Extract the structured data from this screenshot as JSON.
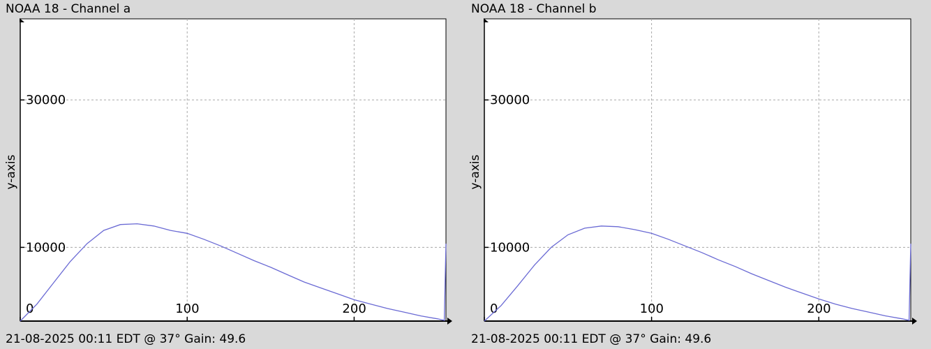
{
  "colors": {
    "background": "#d9d9d9",
    "plot_bg": "#ffffff",
    "series": "#6a6ad4",
    "grid": "#a8a8a8"
  },
  "panels": [
    {
      "title": "NOAA 18 - Channel a",
      "footer": "21-08-2025 00:11 EDT @ 37° Gain: 49.6"
    },
    {
      "title": "NOAA 18 - Channel b",
      "footer": "21-08-2025 00:11 EDT @ 37° Gain: 49.6"
    }
  ],
  "chart_data": [
    {
      "type": "line",
      "title": "NOAA 18 - Channel a",
      "xlabel": "",
      "ylabel": "y-axis",
      "x_ticks": [
        0,
        100,
        200
      ],
      "y_ticks": [
        10000,
        30000
      ],
      "xlim": [
        0,
        255
      ],
      "ylim": [
        0,
        41000
      ],
      "grid": true,
      "series": [
        {
          "x": [
            0,
            10,
            20,
            30,
            40,
            50,
            60,
            70,
            80,
            90,
            100,
            110,
            120,
            130,
            140,
            150,
            160,
            170,
            180,
            190,
            200,
            210,
            220,
            230,
            240,
            250,
            254,
            255
          ],
          "y": [
            0,
            2300,
            5200,
            8100,
            10500,
            12300,
            13100,
            13200,
            12900,
            12300,
            11900,
            11100,
            10200,
            9200,
            8200,
            7300,
            6300,
            5300,
            4500,
            3700,
            2900,
            2300,
            1700,
            1200,
            700,
            300,
            100,
            10500
          ]
        }
      ]
    },
    {
      "type": "line",
      "title": "NOAA 18 - Channel b",
      "xlabel": "",
      "ylabel": "y-axis",
      "x_ticks": [
        0,
        100,
        200
      ],
      "y_ticks": [
        10000,
        30000
      ],
      "xlim": [
        0,
        255
      ],
      "ylim": [
        0,
        41000
      ],
      "grid": true,
      "series": [
        {
          "x": [
            0,
            10,
            20,
            30,
            40,
            50,
            60,
            70,
            80,
            90,
            100,
            110,
            120,
            130,
            140,
            150,
            160,
            170,
            180,
            190,
            200,
            210,
            220,
            230,
            240,
            250,
            254,
            255
          ],
          "y": [
            0,
            2100,
            4800,
            7600,
            10000,
            11700,
            12600,
            12900,
            12800,
            12400,
            11900,
            11100,
            10200,
            9300,
            8300,
            7400,
            6400,
            5500,
            4600,
            3800,
            3000,
            2300,
            1700,
            1200,
            700,
            300,
            100,
            10500
          ]
        }
      ]
    }
  ]
}
